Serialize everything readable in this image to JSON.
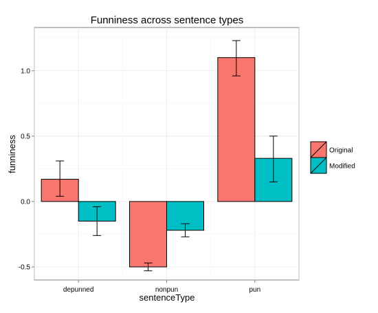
{
  "chart_data": {
    "type": "bar",
    "title": "Funniness across sentence types",
    "xlabel": "sentenceType",
    "ylabel": "funniness",
    "categories": [
      "depunned",
      "nonpun",
      "pun"
    ],
    "series": [
      {
        "name": "Original",
        "color": "#F8766D",
        "values": [
          0.17,
          -0.5,
          1.1
        ],
        "error_low": [
          0.04,
          -0.53,
          0.96
        ],
        "error_high": [
          0.31,
          -0.47,
          1.23
        ]
      },
      {
        "name": "Modified",
        "color": "#00BFC4",
        "values": [
          -0.15,
          -0.22,
          0.33
        ],
        "error_low": [
          -0.26,
          -0.27,
          0.15
        ],
        "error_high": [
          -0.04,
          -0.17,
          0.5
        ]
      }
    ],
    "ylim": [
      -0.6,
      1.33
    ],
    "yticks": [
      -0.5,
      0.0,
      0.5,
      1.0
    ],
    "ytick_labels": [
      "-0.5",
      "0.0",
      "0.5",
      "1.0"
    ],
    "grid": true,
    "legend_position": "right"
  }
}
